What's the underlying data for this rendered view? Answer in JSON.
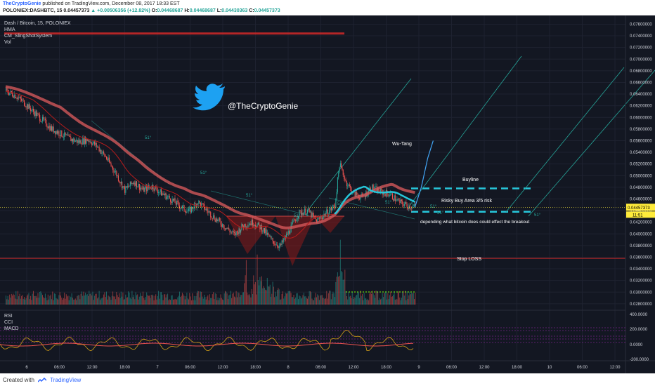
{
  "header": {
    "publisher": "TheCryptoGenie",
    "published_text": "published on TradingView.com, December 08, 2017 18:33 EST",
    "symbol": "POLONIEX:DASHBTC, 15",
    "last": "0.04457373",
    "change": "+0.00506356 (+12.82%)",
    "ohlc": [
      {
        "k": "O:",
        "v": "0.04468687"
      },
      {
        "k": "H:",
        "v": "0.04468687"
      },
      {
        "k": "L:",
        "v": "0.04430363"
      },
      {
        "k": "C:",
        "v": "0.04457373"
      }
    ]
  },
  "legend": {
    "title": "Dash / Bitcoin, 15, POLONIEX",
    "indicators": [
      "HMA",
      "CM_SlingShotSystem",
      "Vol"
    ]
  },
  "overlay": {
    "twitter_handle": "@TheCryptoGenie",
    "wu_tang": "Wu-Tang",
    "buyline": "Buyline",
    "risky": "Risky Buy Area 3/5 risk",
    "depending": "depending what bitcoin does could effect the breakout",
    "stop_loss": "Stop LOSS",
    "angle_labels": [
      "51°",
      "51°",
      "51°",
      "51°",
      "51°",
      "51°",
      "51°",
      "51°",
      "51°"
    ]
  },
  "osc": {
    "labels": [
      "RSI",
      "CCI",
      "MACD"
    ],
    "ticks": [
      "400.0000",
      "200.0000",
      "0.0000",
      "-200.0000"
    ]
  },
  "colors": {
    "background": "#131722",
    "grid": "#1e2230",
    "up": "#26a69a",
    "down": "#ef5350",
    "hma": "#d2575a",
    "cyan": "#26c6da",
    "stop": "#c62828",
    "twitter": "#1da1f2"
  },
  "chart_data": {
    "type": "candlestick",
    "title": "Dash / Bitcoin, 15, POLONIEX",
    "x_ticks": [
      "6",
      "06:00",
      "12:00",
      "18:00",
      "7",
      "06:00",
      "12:00",
      "18:00",
      "8",
      "06:00",
      "12:00",
      "18:00",
      "9",
      "06:00",
      "12:00",
      "18:00",
      "10",
      "06:00",
      "12:00"
    ],
    "y_ticks": [
      "0.07600000",
      "0.07400000",
      "0.07200000",
      "0.07000000",
      "0.06800000",
      "0.06600000",
      "0.06400000",
      "0.06200000",
      "0.06000000",
      "0.05800000",
      "0.05600000",
      "0.05400000",
      "0.05200000",
      "0.05000000",
      "0.04800000",
      "0.04600000",
      "0.04400000",
      "0.04200000",
      "0.04000000",
      "0.03800000",
      "0.03600000",
      "0.03400000",
      "0.03200000",
      "0.03000000",
      "0.02800000"
    ],
    "ylim": [
      0.0275,
      0.0775
    ],
    "last_price": 0.04457373,
    "last_price_label": "0.04457373",
    "countdown_label": "11:51",
    "levels": {
      "resistance": 0.0744,
      "stop_loss": 0.0358,
      "buyline": 0.0478,
      "risky_buy": 0.0438
    },
    "price_path": [
      [
        0,
        0.0645
      ],
      [
        10,
        0.0638
      ],
      [
        20,
        0.0625
      ],
      [
        30,
        0.061
      ],
      [
        40,
        0.0595
      ],
      [
        50,
        0.058
      ],
      [
        60,
        0.0572
      ],
      [
        70,
        0.0563
      ],
      [
        80,
        0.0558
      ],
      [
        90,
        0.0562
      ],
      [
        100,
        0.055
      ],
      [
        110,
        0.053
      ],
      [
        120,
        0.0505
      ],
      [
        130,
        0.0475
      ],
      [
        140,
        0.049
      ],
      [
        150,
        0.0475
      ],
      [
        160,
        0.0482
      ],
      [
        170,
        0.047
      ],
      [
        180,
        0.046
      ],
      [
        190,
        0.0448
      ],
      [
        200,
        0.0438
      ],
      [
        210,
        0.0455
      ],
      [
        220,
        0.044
      ],
      [
        230,
        0.0425
      ],
      [
        240,
        0.0412
      ],
      [
        250,
        0.0398
      ],
      [
        260,
        0.0415
      ],
      [
        270,
        0.042
      ],
      [
        280,
        0.041
      ],
      [
        290,
        0.039
      ],
      [
        300,
        0.0378
      ],
      [
        310,
        0.0405
      ],
      [
        320,
        0.0435
      ],
      [
        330,
        0.044
      ],
      [
        340,
        0.0422
      ],
      [
        350,
        0.0435
      ],
      [
        360,
        0.0448
      ],
      [
        365,
        0.052
      ],
      [
        372,
        0.049
      ],
      [
        380,
        0.047
      ],
      [
        390,
        0.0462
      ],
      [
        400,
        0.048
      ],
      [
        410,
        0.0472
      ],
      [
        420,
        0.0468
      ],
      [
        430,
        0.0455
      ],
      [
        440,
        0.0448
      ],
      [
        448,
        0.0446
      ]
    ],
    "projection": [
      [
        448,
        0.0446
      ],
      [
        455,
        0.048
      ],
      [
        462,
        0.053
      ],
      [
        468,
        0.056
      ]
    ]
  }
}
